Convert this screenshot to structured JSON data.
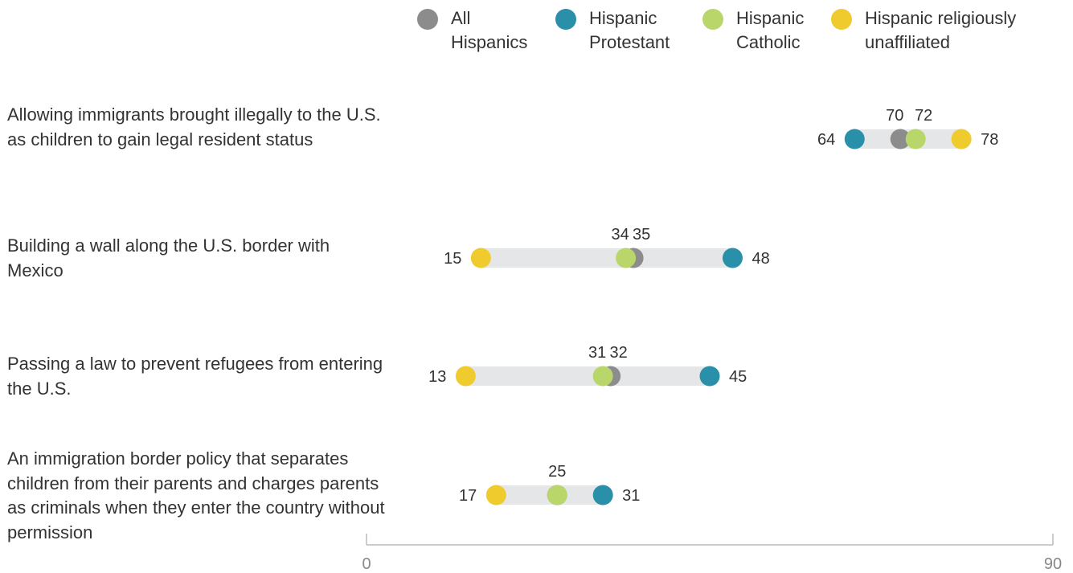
{
  "chart_data": {
    "type": "dot-range",
    "legend": [
      {
        "key": "all",
        "label": "All\nHispanics",
        "color": "#8c8c8c"
      },
      {
        "key": "protestant",
        "label": "Hispanic\nProtestant",
        "color": "#2a8fa8"
      },
      {
        "key": "catholic",
        "label": "Hispanic\nCatholic",
        "color": "#b9d66b"
      },
      {
        "key": "unaffiliated",
        "label": "Hispanic religiously\nunaffiliated",
        "color": "#f0cb2e"
      }
    ],
    "categories": [
      "Allowing immigrants brought illegally to the U.S. as children to gain legal resident status",
      "Building a wall along the U.S. border with Mexico",
      "Passing a law to prevent refugees from entering the U.S.",
      "An immigration border policy that separates children from their parents and charges parents as criminals when they enter the country without permission"
    ],
    "series": [
      {
        "key": "all",
        "values": [
          70,
          35,
          32,
          25
        ]
      },
      {
        "key": "protestant",
        "values": [
          64,
          48,
          45,
          31
        ]
      },
      {
        "key": "catholic",
        "values": [
          72,
          34,
          31,
          25
        ]
      },
      {
        "key": "unaffiliated",
        "values": [
          78,
          15,
          13,
          17
        ]
      }
    ],
    "xlim": [
      0,
      90
    ],
    "xticks": [
      0,
      90
    ],
    "xlabel": "",
    "ylabel": ""
  }
}
